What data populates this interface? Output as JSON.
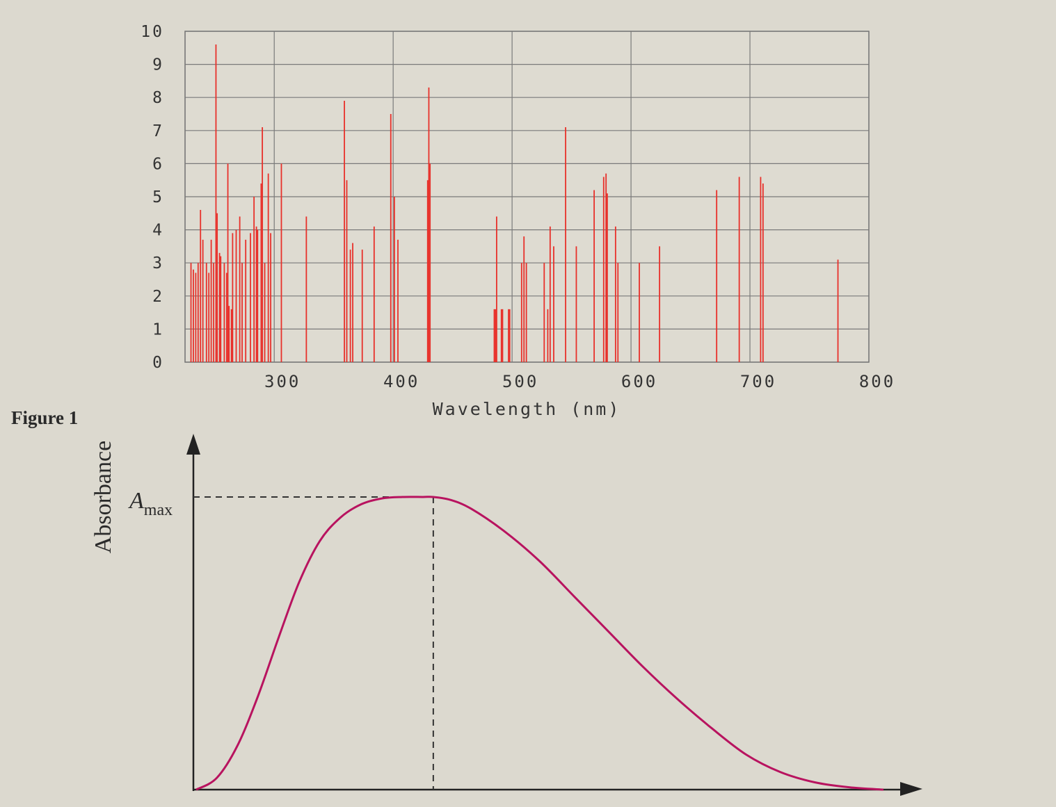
{
  "figure_label": "Figure 1",
  "chart_data": [
    {
      "type": "bar",
      "title": "",
      "xlabel": "Wavelength (nm)",
      "ylabel": "",
      "xlim": [
        225,
        800
      ],
      "ylim": [
        0,
        10
      ],
      "x_ticks": [
        "300",
        "400",
        "500",
        "600",
        "700",
        "800"
      ],
      "y_ticks": [
        "0",
        "1",
        "2",
        "3",
        "4",
        "5",
        "6",
        "7",
        "8",
        "9",
        "10"
      ],
      "grid": true,
      "bar_color": "#e8302a",
      "lines": [
        {
          "x": 230,
          "y": 3.0
        },
        {
          "x": 232,
          "y": 2.8
        },
        {
          "x": 234,
          "y": 2.7
        },
        {
          "x": 236,
          "y": 3.0
        },
        {
          "x": 238,
          "y": 4.6
        },
        {
          "x": 240,
          "y": 3.7
        },
        {
          "x": 243,
          "y": 3.0
        },
        {
          "x": 245,
          "y": 2.7
        },
        {
          "x": 247,
          "y": 3.7
        },
        {
          "x": 249,
          "y": 3.0
        },
        {
          "x": 251,
          "y": 9.6
        },
        {
          "x": 252,
          "y": 4.5
        },
        {
          "x": 254,
          "y": 3.3
        },
        {
          "x": 255,
          "y": 3.2
        },
        {
          "x": 258,
          "y": 3.0
        },
        {
          "x": 260,
          "y": 2.7
        },
        {
          "x": 261,
          "y": 6.0
        },
        {
          "x": 262,
          "y": 1.7
        },
        {
          "x": 264,
          "y": 1.6
        },
        {
          "x": 265,
          "y": 3.9
        },
        {
          "x": 268,
          "y": 4.0
        },
        {
          "x": 271,
          "y": 4.4
        },
        {
          "x": 273,
          "y": 3.0
        },
        {
          "x": 276,
          "y": 3.7
        },
        {
          "x": 280,
          "y": 3.9
        },
        {
          "x": 283,
          "y": 5.0
        },
        {
          "x": 285,
          "y": 4.1
        },
        {
          "x": 286,
          "y": 4.0
        },
        {
          "x": 289,
          "y": 5.4
        },
        {
          "x": 290,
          "y": 7.1
        },
        {
          "x": 292,
          "y": 3.0
        },
        {
          "x": 295,
          "y": 5.7
        },
        {
          "x": 297,
          "y": 3.9
        },
        {
          "x": 306,
          "y": 6.0
        },
        {
          "x": 327,
          "y": 4.4
        },
        {
          "x": 359,
          "y": 7.9
        },
        {
          "x": 361,
          "y": 5.5
        },
        {
          "x": 364,
          "y": 3.4
        },
        {
          "x": 366,
          "y": 3.6
        },
        {
          "x": 374,
          "y": 3.4
        },
        {
          "x": 384,
          "y": 4.1
        },
        {
          "x": 398,
          "y": 7.5
        },
        {
          "x": 401,
          "y": 5.0
        },
        {
          "x": 404,
          "y": 3.7
        },
        {
          "x": 429,
          "y": 5.5
        },
        {
          "x": 430,
          "y": 8.3
        },
        {
          "x": 431,
          "y": 6.0
        },
        {
          "x": 485,
          "y": 1.6
        },
        {
          "x": 486,
          "y": 1.6
        },
        {
          "x": 487,
          "y": 4.4
        },
        {
          "x": 491,
          "y": 1.6
        },
        {
          "x": 492,
          "y": 1.6
        },
        {
          "x": 497,
          "y": 1.6
        },
        {
          "x": 498,
          "y": 1.6
        },
        {
          "x": 508,
          "y": 3.0
        },
        {
          "x": 510,
          "y": 3.8
        },
        {
          "x": 512,
          "y": 3.0
        },
        {
          "x": 527,
          "y": 3.0
        },
        {
          "x": 530,
          "y": 1.6
        },
        {
          "x": 532,
          "y": 4.1
        },
        {
          "x": 535,
          "y": 3.5
        },
        {
          "x": 545,
          "y": 7.1
        },
        {
          "x": 554,
          "y": 3.5
        },
        {
          "x": 569,
          "y": 5.2
        },
        {
          "x": 577,
          "y": 5.6
        },
        {
          "x": 579,
          "y": 5.7
        },
        {
          "x": 580,
          "y": 5.1
        },
        {
          "x": 587,
          "y": 4.1
        },
        {
          "x": 589,
          "y": 3.0
        },
        {
          "x": 607,
          "y": 3.0
        },
        {
          "x": 624,
          "y": 3.5
        },
        {
          "x": 672,
          "y": 5.2
        },
        {
          "x": 691,
          "y": 5.6
        },
        {
          "x": 709,
          "y": 5.6
        },
        {
          "x": 711,
          "y": 5.4
        },
        {
          "x": 774,
          "y": 3.1
        }
      ]
    },
    {
      "type": "line",
      "title": "",
      "xlabel": "",
      "ylabel": "Absorbance",
      "annotation": {
        "label": "A",
        "subscript": "max"
      },
      "line_color": "#b8135f",
      "peak": {
        "x": 0.345,
        "y": 1.0
      },
      "x": [
        0,
        0.03,
        0.06,
        0.09,
        0.12,
        0.15,
        0.18,
        0.21,
        0.24,
        0.27,
        0.3,
        0.33,
        0.345,
        0.37,
        0.4,
        0.45,
        0.5,
        0.55,
        0.6,
        0.65,
        0.7,
        0.75,
        0.8,
        0.85,
        0.9,
        0.95,
        1.0
      ],
      "y": [
        0.0,
        0.04,
        0.15,
        0.32,
        0.52,
        0.71,
        0.85,
        0.93,
        0.975,
        0.995,
        1.0,
        1.0,
        1.0,
        0.99,
        0.96,
        0.88,
        0.78,
        0.66,
        0.54,
        0.42,
        0.31,
        0.21,
        0.12,
        0.06,
        0.025,
        0.008,
        0.0
      ]
    }
  ]
}
